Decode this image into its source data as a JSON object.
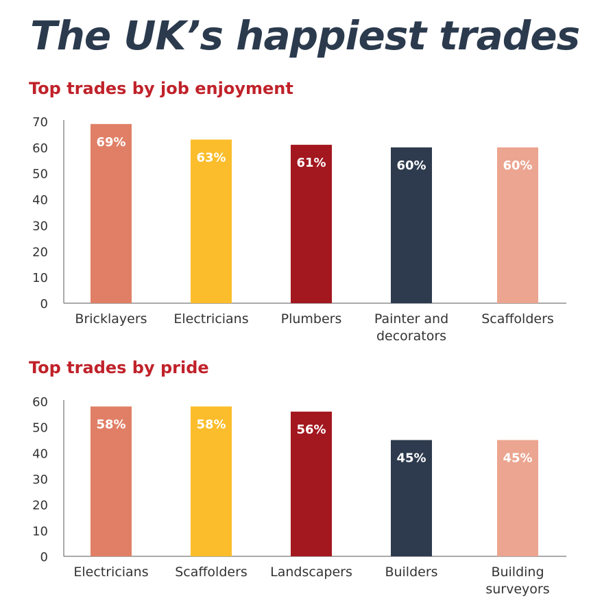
{
  "title": "The UK’s happiest trades",
  "colors": [
    "#e07f66",
    "#fbbd2b",
    "#a3171f",
    "#2e3b4e",
    "#eba590"
  ],
  "chart_data": [
    {
      "type": "bar",
      "title": "Top trades by job enjoyment",
      "categories": [
        [
          "Bricklayers"
        ],
        [
          "Electricians"
        ],
        [
          "Plumbers"
        ],
        [
          "Painter and",
          "decorators"
        ],
        [
          "Scaffolders"
        ]
      ],
      "values": [
        69,
        63,
        61,
        60,
        60
      ],
      "data_labels": [
        "69%",
        "63%",
        "61%",
        "60%",
        "60%"
      ],
      "ylim": [
        0,
        70
      ],
      "yticks": [
        0,
        10,
        20,
        30,
        40,
        50,
        60,
        70
      ],
      "xlabel": "",
      "ylabel": "",
      "grid": false
    },
    {
      "type": "bar",
      "title": "Top trades by pride",
      "categories": [
        [
          "Electricians"
        ],
        [
          "Scaffolders"
        ],
        [
          "Landscapers"
        ],
        [
          "Builders"
        ],
        [
          "Building",
          "surveyors"
        ]
      ],
      "values": [
        58,
        58,
        56,
        45,
        45
      ],
      "data_labels": [
        "58%",
        "58%",
        "56%",
        "45%",
        "45%"
      ],
      "ylim": [
        0,
        60
      ],
      "yticks": [
        0,
        10,
        20,
        30,
        40,
        50,
        60
      ],
      "xlabel": "",
      "ylabel": "",
      "grid": false
    }
  ]
}
